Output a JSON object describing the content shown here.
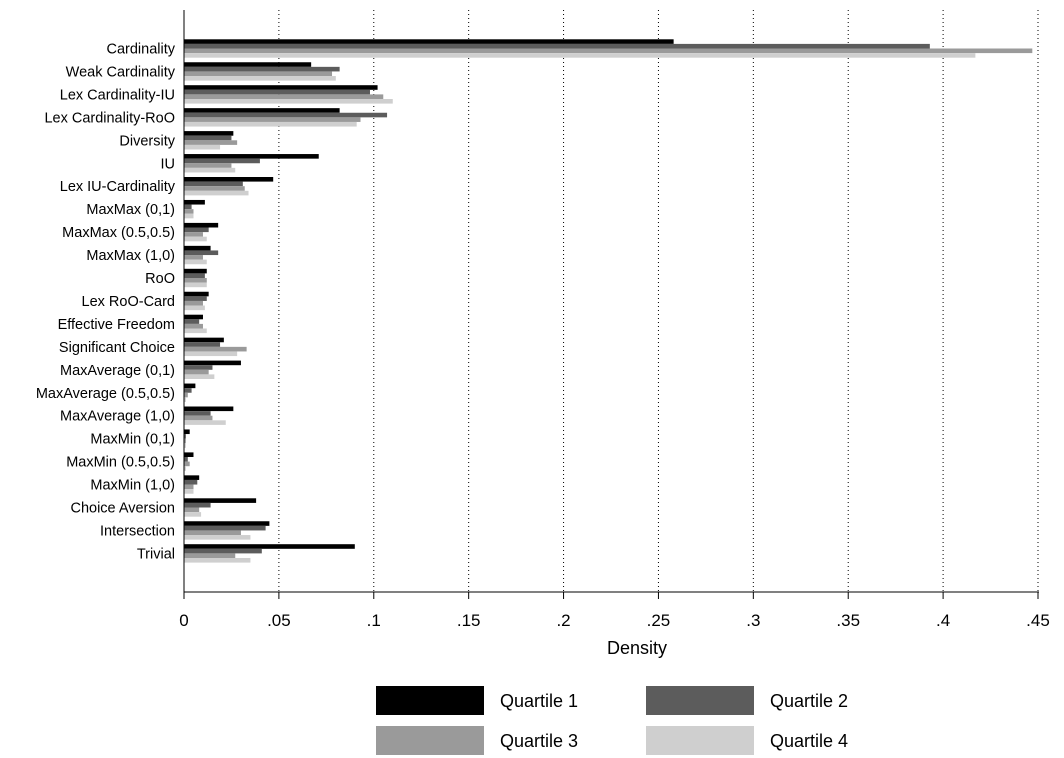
{
  "chart_data": {
    "type": "bar",
    "orientation": "horizontal",
    "title": "",
    "xlabel": "Density",
    "ylabel": "",
    "xlim": [
      0,
      0.45
    ],
    "x_ticks": [
      0,
      0.05,
      0.1,
      0.15,
      0.2,
      0.25,
      0.3,
      0.35,
      0.4,
      0.45
    ],
    "x_tick_labels": [
      "0",
      ".05",
      ".1",
      ".15",
      ".2",
      ".25",
      ".3",
      ".35",
      ".4",
      ".45"
    ],
    "grid": "vertical dotted",
    "legend_position": "bottom",
    "categories": [
      "Cardinality",
      "Weak Cardinality",
      "Lex Cardinality-IU",
      "Lex Cardinality-RoO",
      "Diversity",
      "IU",
      "Lex IU-Cardinality",
      "MaxMax (0,1)",
      "MaxMax (0.5,0.5)",
      "MaxMax (1,0)",
      "RoO",
      "Lex RoO-Card",
      "Effective Freedom",
      "Significant Choice",
      "MaxAverage (0,1)",
      "MaxAverage (0.5,0.5)",
      "MaxAverage (1,0)",
      "MaxMin (0,1)",
      "MaxMin (0.5,0.5)",
      "MaxMin (1,0)",
      "Choice Aversion",
      "Intersection",
      "Trivial"
    ],
    "series": [
      {
        "name": "Quartile 1",
        "color": "#000000",
        "values": [
          0.258,
          0.067,
          0.102,
          0.082,
          0.026,
          0.071,
          0.047,
          0.011,
          0.018,
          0.014,
          0.012,
          0.013,
          0.01,
          0.021,
          0.03,
          0.006,
          0.026,
          0.003,
          0.005,
          0.008,
          0.038,
          0.045,
          0.09
        ]
      },
      {
        "name": "Quartile 2",
        "color": "#5c5c5c",
        "values": [
          0.393,
          0.082,
          0.098,
          0.107,
          0.025,
          0.04,
          0.031,
          0.004,
          0.013,
          0.018,
          0.011,
          0.012,
          0.008,
          0.019,
          0.015,
          0.004,
          0.014,
          0.001,
          0.002,
          0.007,
          0.014,
          0.043,
          0.041
        ]
      },
      {
        "name": "Quartile 3",
        "color": "#9a9a9a",
        "values": [
          0.447,
          0.078,
          0.105,
          0.093,
          0.028,
          0.025,
          0.032,
          0.005,
          0.01,
          0.01,
          0.012,
          0.01,
          0.01,
          0.033,
          0.013,
          0.002,
          0.015,
          0.001,
          0.003,
          0.005,
          0.008,
          0.03,
          0.027
        ]
      },
      {
        "name": "Quartile 4",
        "color": "#cfcfcf",
        "values": [
          0.417,
          0.08,
          0.11,
          0.091,
          0.019,
          0.027,
          0.034,
          0.005,
          0.012,
          0.012,
          0.012,
          0.011,
          0.012,
          0.028,
          0.016,
          0.001,
          0.022,
          0.001,
          0.001,
          0.005,
          0.009,
          0.035,
          0.035
        ]
      }
    ]
  }
}
